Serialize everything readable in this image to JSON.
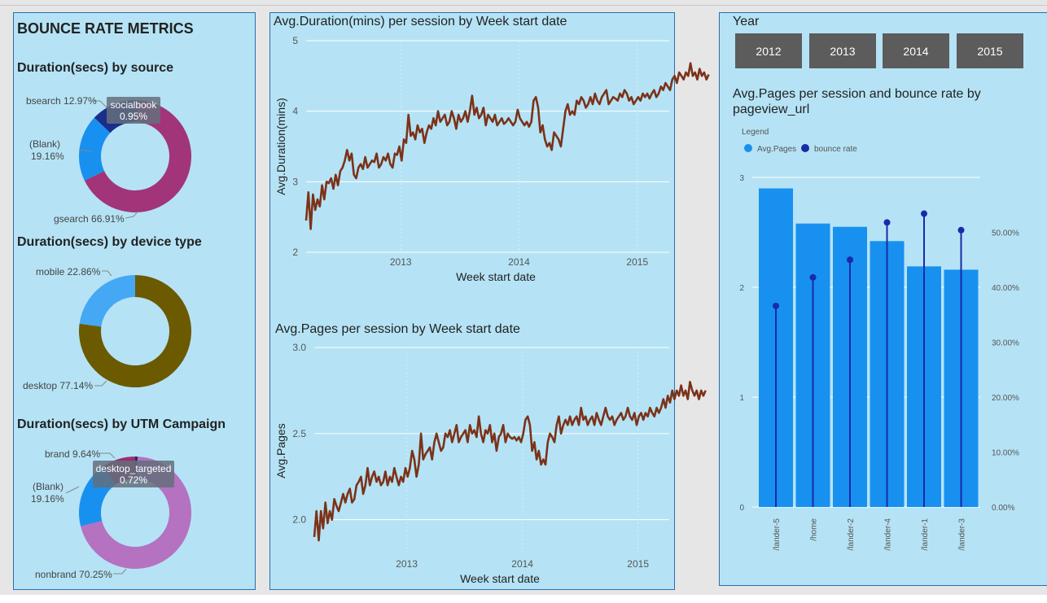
{
  "dashboard": {
    "title": "BOUNCE RATE METRICS",
    "year_label": "Year",
    "years": [
      "2012",
      "2013",
      "2014",
      "2015"
    ]
  },
  "chart_data": [
    {
      "id": "source",
      "type": "pie",
      "title": "Duration(secs) by source",
      "slices": [
        {
          "label": "gsearch",
          "pct": "66.91%",
          "value": 66.91,
          "color": "#a23579"
        },
        {
          "label": "(Blank)",
          "pct": "19.16%",
          "value": 19.16,
          "color": "#1890f0"
        },
        {
          "label": "bsearch",
          "pct": "12.97%",
          "value": 12.97,
          "color": "#1b2e8c"
        },
        {
          "label": "socialbook",
          "pct": "0.95%",
          "value": 0.95,
          "color": "#5a2a80"
        }
      ]
    },
    {
      "id": "device",
      "type": "pie",
      "title": "Duration(secs) by device type",
      "slices": [
        {
          "label": "desktop",
          "pct": "77.14%",
          "value": 77.14,
          "color": "#6b5a00"
        },
        {
          "label": "mobile",
          "pct": "22.86%",
          "value": 22.86,
          "color": "#45a8f5"
        }
      ]
    },
    {
      "id": "utm",
      "type": "pie",
      "title": "Duration(secs) by UTM Campaign",
      "slices": [
        {
          "label": "nonbrand",
          "pct": "70.25%",
          "value": 70.25,
          "color": "#b472c0"
        },
        {
          "label": "(Blank)",
          "pct": "19.16%",
          "value": 19.16,
          "color": "#1890f0"
        },
        {
          "label": "brand",
          "pct": "9.64%",
          "value": 9.64,
          "color": "#9a2f6a"
        },
        {
          "label": "desktop_targeted",
          "pct": "0.72%",
          "value": 0.72,
          "color": "#3a1d6b"
        }
      ]
    },
    {
      "id": "duration",
      "type": "line",
      "title": "Avg.Duration(mins) per session by Week start date",
      "xlabel": "Week start date",
      "ylabel": "Avg.Duration(mins)",
      "ylim": [
        2,
        5
      ],
      "yticks": [
        "2",
        "3",
        "4",
        "5"
      ],
      "xticks": [
        "2013",
        "2014",
        "2015"
      ],
      "color": "#7b3219",
      "x_start": 2012.2,
      "x_step": 0.01923,
      "values": [
        2.45,
        2.85,
        2.33,
        2.82,
        2.6,
        2.75,
        2.65,
        2.95,
        2.75,
        3.0,
        2.98,
        3.05,
        2.9,
        3.1,
        2.95,
        3.15,
        3.2,
        3.3,
        3.45,
        3.3,
        3.4,
        3.1,
        3.05,
        3.2,
        3.25,
        3.18,
        3.35,
        3.2,
        3.25,
        3.3,
        3.28,
        3.4,
        3.2,
        3.25,
        3.35,
        3.3,
        3.4,
        3.25,
        3.2,
        3.4,
        3.38,
        3.5,
        3.3,
        3.6,
        3.55,
        3.95,
        3.65,
        3.7,
        3.6,
        3.8,
        3.7,
        3.75,
        3.55,
        3.7,
        3.8,
        3.75,
        3.9,
        3.8,
        4.0,
        3.85,
        3.9,
        3.95,
        3.8,
        3.85,
        4.0,
        3.9,
        3.75,
        3.95,
        3.85,
        3.9,
        4.0,
        3.85,
        4.0,
        4.22,
        3.95,
        4.05,
        3.9,
        3.95,
        4.05,
        3.8,
        3.95,
        3.9,
        3.85,
        3.95,
        3.8,
        3.85,
        3.9,
        3.82,
        3.85,
        3.9,
        3.85,
        3.8,
        3.85,
        4.02,
        3.9,
        3.85,
        3.8,
        3.85,
        3.78,
        3.85,
        4.15,
        4.2,
        4.05,
        3.7,
        3.8,
        3.6,
        3.5,
        3.55,
        3.45,
        3.7,
        3.65,
        3.6,
        3.5,
        3.75,
        4.0,
        4.1,
        3.95,
        4.0,
        3.95,
        4.15,
        4.1,
        4.2,
        4.15,
        4.05,
        4.1,
        4.2,
        4.1,
        4.25,
        4.15,
        4.1,
        4.2,
        4.25,
        4.3,
        4.1,
        4.15,
        4.2,
        4.18,
        4.15,
        4.25,
        4.2,
        4.3,
        4.25,
        4.15,
        4.2,
        4.1,
        4.15,
        4.2,
        4.15,
        4.25,
        4.2,
        4.25,
        4.18,
        4.25,
        4.3,
        4.2,
        4.25,
        4.35,
        4.3,
        4.4,
        4.35,
        4.3,
        4.45,
        4.5,
        4.4,
        4.55,
        4.5,
        4.45,
        4.55,
        4.5,
        4.68,
        4.5,
        4.55,
        4.45,
        4.6,
        4.5,
        4.55,
        4.45,
        4.52
      ]
    },
    {
      "id": "pages",
      "type": "line",
      "title": "Avg.Pages per session by Week start date",
      "xlabel": "Week start date",
      "ylabel": "Avg.Pages",
      "ylim": [
        1.8,
        3.0
      ],
      "yticks": [
        "2.0",
        "2.5",
        "3.0"
      ],
      "ytick_values": [
        2.0,
        2.5,
        3.0
      ],
      "xticks": [
        "2013",
        "2014",
        "2015"
      ],
      "color": "#7b3219",
      "x_start": 2012.2,
      "x_step": 0.01923,
      "values": [
        1.9,
        2.05,
        1.88,
        2.05,
        1.95,
        2.1,
        1.98,
        2.05,
        2.0,
        2.12,
        2.08,
        2.05,
        2.1,
        2.15,
        2.1,
        2.15,
        2.18,
        2.1,
        2.12,
        2.2,
        2.22,
        2.25,
        2.15,
        2.2,
        2.3,
        2.2,
        2.25,
        2.28,
        2.22,
        2.25,
        2.2,
        2.22,
        2.28,
        2.2,
        2.25,
        2.22,
        2.3,
        2.25,
        2.2,
        2.25,
        2.22,
        2.3,
        2.25,
        2.3,
        2.4,
        2.35,
        2.25,
        2.32,
        2.5,
        2.35,
        2.38,
        2.4,
        2.42,
        2.35,
        2.45,
        2.5,
        2.45,
        2.4,
        2.42,
        2.5,
        2.48,
        2.52,
        2.45,
        2.5,
        2.55,
        2.45,
        2.48,
        2.5,
        2.52,
        2.45,
        2.55,
        2.5,
        2.52,
        2.48,
        2.6,
        2.5,
        2.45,
        2.52,
        2.5,
        2.55,
        2.45,
        2.5,
        2.4,
        2.48,
        2.5,
        2.55,
        2.45,
        2.5,
        2.48,
        2.47,
        2.48,
        2.46,
        2.48,
        2.45,
        2.5,
        2.58,
        2.6,
        2.55,
        2.4,
        2.45,
        2.35,
        2.4,
        2.32,
        2.35,
        2.32,
        2.45,
        2.5,
        2.48,
        2.45,
        2.55,
        2.6,
        2.5,
        2.55,
        2.58,
        2.55,
        2.6,
        2.55,
        2.58,
        2.6,
        2.55,
        2.65,
        2.58,
        2.6,
        2.55,
        2.58,
        2.6,
        2.55,
        2.62,
        2.58,
        2.55,
        2.6,
        2.65,
        2.6,
        2.58,
        2.6,
        2.55,
        2.58,
        2.6,
        2.62,
        2.58,
        2.6,
        2.65,
        2.6,
        2.58,
        2.62,
        2.55,
        2.6,
        2.62,
        2.58,
        2.62,
        2.6,
        2.65,
        2.62,
        2.6,
        2.65,
        2.62,
        2.65,
        2.7,
        2.65,
        2.72,
        2.68,
        2.75,
        2.7,
        2.75,
        2.72,
        2.78,
        2.72,
        2.75,
        2.7,
        2.8,
        2.75,
        2.72,
        2.75,
        2.7,
        2.75,
        2.72,
        2.75
      ]
    },
    {
      "id": "pageview",
      "type": "bar",
      "title": "Avg.Pages per session and bounce rate by pageview_url",
      "title_lines": [
        "Avg.Pages per session and bounce rate by",
        "pageview_url"
      ],
      "legend_title": "Legend",
      "series_names": [
        "Avg.Pages",
        "bounce rate"
      ],
      "categories": [
        "/lander-5",
        "/home",
        "/lander-2",
        "/lander-4",
        "/lander-1",
        "/lander-3"
      ],
      "pages": [
        2.9,
        2.58,
        2.55,
        2.42,
        2.19,
        2.16
      ],
      "bounce": [
        36.6,
        41.8,
        45.0,
        51.8,
        53.4,
        50.4
      ],
      "y_left": {
        "ticks": [
          "0",
          "1",
          "2",
          "3"
        ],
        "max": 3
      },
      "y_right": {
        "ticks": [
          "0.00%",
          "10.00%",
          "20.00%",
          "30.00%",
          "40.00%",
          "50.00%"
        ],
        "max": 60
      },
      "bar_color": "#1890f0",
      "dot_color": "#1a2aa8"
    }
  ]
}
